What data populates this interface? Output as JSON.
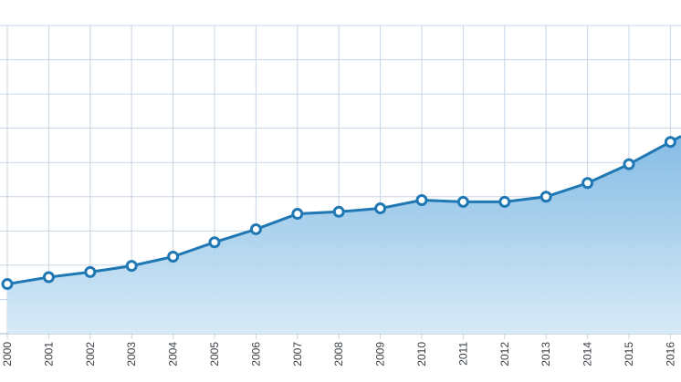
{
  "chart_data": {
    "type": "area",
    "x": [
      "2000",
      "2001",
      "2002",
      "2003",
      "2004",
      "2005",
      "2006",
      "2007",
      "2008",
      "2009",
      "2010",
      "2011",
      "2012",
      "2013",
      "2014",
      "2015",
      "2016"
    ],
    "values": [
      1.45,
      1.65,
      1.8,
      1.98,
      2.25,
      2.67,
      3.05,
      3.5,
      3.56,
      3.66,
      3.9,
      3.85,
      3.85,
      4.0,
      4.4,
      4.95,
      5.6
    ],
    "ylim": [
      0,
      9
    ],
    "grid": true,
    "line_color": "#1f78b4",
    "fill_color": "#7fb9e3",
    "grid_color": "#c8d6e6",
    "marker_fill": "#ffffff"
  }
}
